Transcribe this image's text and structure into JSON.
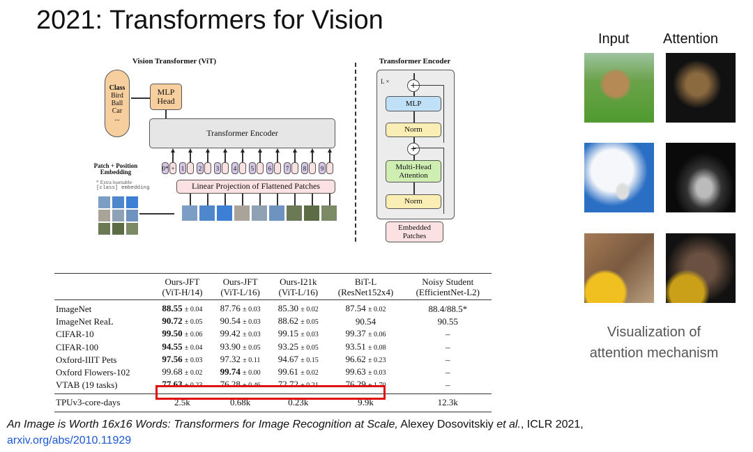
{
  "slide": {
    "title": "2021: Transformers for Vision"
  },
  "vit": {
    "title": "Vision Transformer (ViT)",
    "class_title": "Class",
    "classes": [
      "Bird",
      "Ball",
      "Car",
      "..."
    ],
    "mlp_head": "MLP Head",
    "encoder": "Transformer Encoder",
    "patch_pos": "Patch + Position Embedding",
    "extra_note": "* Extra learnable",
    "extra_note2": "[class] embedding",
    "projection": "Linear Projection of Flattened Patches",
    "tokens": [
      "0*",
      "1",
      "2",
      "3",
      "4",
      "5",
      "6",
      "7",
      "8",
      "9"
    ]
  },
  "encoder": {
    "title": "Transformer Encoder",
    "repeat": "L ×",
    "mlp": "MLP",
    "norm": "Norm",
    "mha": "Multi-Head Attention",
    "embedded": "Embedded Patches"
  },
  "attention": {
    "input_label": "Input",
    "attention_label": "Attention",
    "caption_line1": "Visualization of",
    "caption_line2": "attention mechanism"
  },
  "table": {
    "headers": [
      [
        "",
        ""
      ],
      [
        "Ours-JFT",
        "(ViT-H/14)"
      ],
      [
        "Ours-JFT",
        "(ViT-L/16)"
      ],
      [
        "Ours-I21k",
        "(ViT-L/16)"
      ],
      [
        "BiT-L",
        "(ResNet152x4)"
      ],
      [
        "Noisy Student",
        "(EfficientNet-L2)"
      ]
    ],
    "rows": [
      [
        "ImageNet",
        [
          "88.55",
          "± 0.04",
          true
        ],
        [
          "87.76",
          "± 0.03"
        ],
        [
          "85.30",
          "± 0.02"
        ],
        [
          "87.54",
          "± 0.02"
        ],
        [
          "88.4/88.5*",
          ""
        ]
      ],
      [
        "ImageNet ReaL",
        [
          "90.72",
          "± 0.05",
          true
        ],
        [
          "90.54",
          "± 0.03"
        ],
        [
          "88.62",
          "± 0.05"
        ],
        [
          "90.54",
          ""
        ],
        [
          "90.55",
          ""
        ]
      ],
      [
        "CIFAR-10",
        [
          "99.50",
          "± 0.06",
          true
        ],
        [
          "99.42",
          "± 0.03"
        ],
        [
          "99.15",
          "± 0.03"
        ],
        [
          "99.37",
          "± 0.06"
        ],
        [
          "–",
          ""
        ]
      ],
      [
        "CIFAR-100",
        [
          "94.55",
          "± 0.04",
          true
        ],
        [
          "93.90",
          "± 0.05"
        ],
        [
          "93.25",
          "± 0.05"
        ],
        [
          "93.51",
          "± 0.08"
        ],
        [
          "–",
          ""
        ]
      ],
      [
        "Oxford-IIIT Pets",
        [
          "97.56",
          "± 0.03",
          true
        ],
        [
          "97.32",
          "± 0.11"
        ],
        [
          "94.67",
          "± 0.15"
        ],
        [
          "96.62",
          "± 0.23"
        ],
        [
          "–",
          ""
        ]
      ],
      [
        "Oxford Flowers-102",
        [
          "99.68",
          "± 0.02"
        ],
        [
          "99.74",
          "± 0.00",
          true
        ],
        [
          "99.61",
          "± 0.02"
        ],
        [
          "99.63",
          "± 0.03"
        ],
        [
          "–",
          ""
        ]
      ],
      [
        "VTAB (19 tasks)",
        [
          "77.63",
          "± 0.23",
          true
        ],
        [
          "76.28",
          "± 0.46"
        ],
        [
          "72.72",
          "± 0.21"
        ],
        [
          "76.29",
          "± 1.70"
        ],
        [
          "–",
          ""
        ]
      ]
    ],
    "footer": [
      "TPUv3-core-days",
      "2.5k",
      "0.68k",
      "0.23k",
      "9.9k",
      "12.3k"
    ],
    "highlight_color": "#e01010"
  },
  "citation": {
    "title": "An Image is Worth 16x16 Words: Transformers for Image Recognition at Scale,",
    "authors": " Alexey Dosovitskiy ",
    "etal": "et al.",
    "venue": ", ICLR 2021,",
    "link": "arxiv.org/abs/2010.11929"
  }
}
